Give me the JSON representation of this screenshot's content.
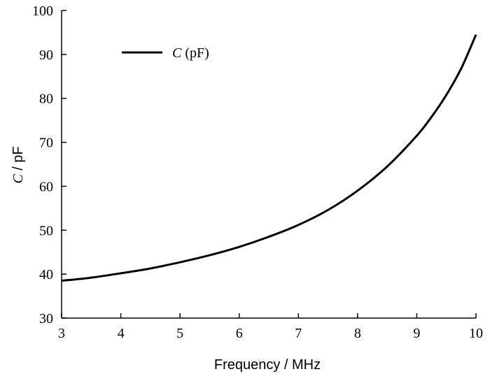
{
  "chart_data": {
    "type": "line",
    "title": "",
    "xlabel": "Frequency / MHz",
    "ylabel_italic": "C",
    "ylabel_rest": " / pF",
    "xlim": [
      3,
      10
    ],
    "ylim": [
      30,
      100
    ],
    "xticks": [
      3,
      4,
      5,
      6,
      7,
      8,
      9,
      10
    ],
    "yticks": [
      30,
      40,
      50,
      60,
      70,
      80,
      90,
      100
    ],
    "grid": false,
    "legend_position": "top-left",
    "series": [
      {
        "name_italic": "C",
        "name_rest": " (pF)",
        "color": "#000000",
        "x": [
          3.0,
          3.5,
          4.0,
          4.5,
          5.0,
          5.5,
          6.0,
          6.5,
          7.0,
          7.5,
          8.0,
          8.5,
          9.0,
          9.25,
          9.5,
          9.75,
          10.0
        ],
        "y": [
          38.5,
          39.2,
          40.2,
          41.3,
          42.7,
          44.3,
          46.2,
          48.5,
          51.2,
          54.6,
          59.0,
          64.5,
          71.5,
          75.8,
          80.8,
          86.8,
          94.5
        ]
      }
    ]
  }
}
